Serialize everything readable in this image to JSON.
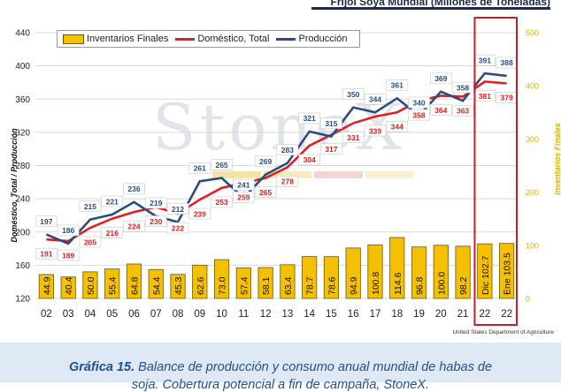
{
  "header": {
    "title_fragment": "Frijol Soya Mundial (Millones de Toneladas)"
  },
  "watermark": {
    "text": "StoneX"
  },
  "legend": {
    "bar_label": "Inventarios Finales",
    "domestic_label": "Doméstico, Total",
    "production_label": "Producción"
  },
  "axes": {
    "left_title": "Doméstico, Total / Producción",
    "right_title": "Inventarios Finales"
  },
  "source": "United States Department of Agriculture",
  "caption": {
    "bold": "Gráfica 15.",
    "text": " Balance de producción y consumo anual mundial de habas de",
    "line2": "soja. Cobertura potencial a fin de campaña, StoneX."
  },
  "colors": {
    "bar_fill": "#f5c000",
    "bar_stroke": "#6b5a00",
    "domestic": "#e02020",
    "production": "#2a4d80",
    "right_axis": "#e0b000",
    "highlight_box": "#c0202a",
    "caption_text": "#1f4f96"
  },
  "chart_data": {
    "type": "bar",
    "categories": [
      "02",
      "03",
      "04",
      "05",
      "06",
      "07",
      "08",
      "09",
      "10",
      "11",
      "12",
      "13",
      "14",
      "15",
      "16",
      "17",
      "18",
      "19",
      "20",
      "21",
      "22",
      "22"
    ],
    "highlight_labels": [
      "",
      "",
      "",
      "",
      "",
      "",
      "",
      "",
      "",
      "",
      "",
      "",
      "",
      "",
      "",
      "",
      "",
      "",
      "",
      "",
      "Dic",
      "Ene"
    ],
    "left_axis": {
      "ylim": [
        120,
        440
      ],
      "ticks": [
        120,
        160,
        200,
        240,
        280,
        320,
        360,
        400,
        440
      ]
    },
    "right_axis": {
      "ylim": [
        0,
        500
      ],
      "ticks": [
        0,
        100,
        200,
        300,
        400,
        500
      ]
    },
    "bar_value_labels": [
      "44.9",
      "40.4",
      "50.0",
      "55.4",
      "64.8",
      "54.4",
      "45.3",
      "62.6",
      "73.0",
      "57.4",
      "58.1",
      "63.4",
      "78.7",
      "78.6",
      "94.9",
      "100.8",
      "114.6",
      "96.8",
      "100.0",
      "98.2",
      "102.7",
      "103.5"
    ],
    "series": [
      {
        "name": "Inventarios Finales",
        "axis": "right",
        "values": [
          44.9,
          40.4,
          50.0,
          55.4,
          64.8,
          54.4,
          45.3,
          62.6,
          73.0,
          57.4,
          58.1,
          63.4,
          78.7,
          78.6,
          94.9,
          100.8,
          114.6,
          96.8,
          100.0,
          98.2,
          102.7,
          103.5
        ]
      },
      {
        "name": "Doméstico, Total",
        "axis": "left",
        "values": [
          191,
          189,
          205,
          216,
          224,
          230,
          222,
          239,
          253,
          259,
          265,
          278,
          304,
          317,
          331,
          339,
          344,
          358,
          364,
          363,
          381,
          379
        ],
        "labels": [
          "191",
          "189",
          "205",
          "216",
          "224",
          "230",
          "222",
          "239",
          "253",
          "259",
          "265",
          "278",
          "304",
          "317",
          "331",
          "339",
          "344",
          "358",
          "364",
          "363",
          "381",
          "379"
        ]
      },
      {
        "name": "Producción",
        "axis": "left",
        "values": [
          197,
          186,
          215,
          221,
          236,
          219,
          212,
          261,
          265,
          241,
          269,
          283,
          321,
          315,
          350,
          344,
          361,
          340,
          369,
          358,
          391,
          388
        ],
        "labels": [
          "197",
          "186",
          "215",
          "221",
          "236",
          "219",
          "212",
          "261",
          "265",
          "241",
          "269",
          "283",
          "321",
          "315",
          "350",
          "344",
          "361",
          "340",
          "369",
          "358",
          "391",
          "388"
        ]
      }
    ],
    "highlight_range": [
      20,
      21
    ]
  }
}
